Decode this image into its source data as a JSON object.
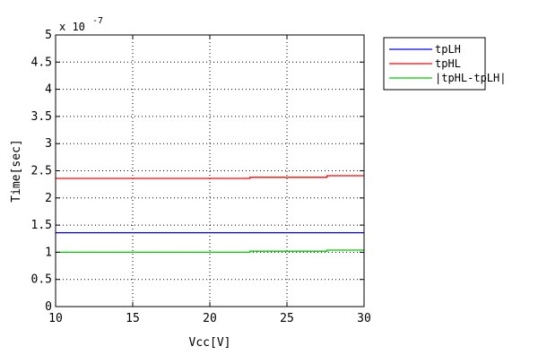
{
  "chart_data": {
    "type": "line",
    "title": "",
    "xlabel": "Vcc[V]",
    "ylabel": "Time[sec]",
    "xlim": [
      10,
      30
    ],
    "ylim": [
      0,
      5
    ],
    "y_exponent_label": "x 10",
    "y_exponent": "-7",
    "x_ticks": [
      10,
      15,
      20,
      25,
      30
    ],
    "x_tick_labels": [
      "10",
      "15",
      "20",
      "25",
      "30"
    ],
    "y_ticks": [
      0,
      0.5,
      1,
      1.5,
      2,
      2.5,
      3,
      3.5,
      4,
      4.5,
      5
    ],
    "y_tick_labels": [
      "0",
      "0.5",
      "1",
      "1.5",
      "2",
      "2.5",
      "3",
      "3.5",
      "4",
      "4.5",
      "5"
    ],
    "grid": true,
    "legend_position": "outside-right-top",
    "series": [
      {
        "name": "tpLH",
        "color": "#0000ff",
        "x": [
          10,
          30
        ],
        "y": [
          1.36,
          1.36
        ]
      },
      {
        "name": "tpHL",
        "color": "#ff0000",
        "x": [
          10,
          22.6,
          22.6,
          27.6,
          27.6,
          30
        ],
        "y": [
          2.36,
          2.36,
          2.38,
          2.38,
          2.41,
          2.41
        ]
      },
      {
        "name": "|tpHL-tpLH|",
        "color": "#00cc00",
        "x": [
          10,
          22.6,
          22.6,
          27.6,
          27.6,
          30
        ],
        "y": [
          1.0,
          1.0,
          1.02,
          1.02,
          1.04,
          1.04
        ]
      }
    ]
  }
}
